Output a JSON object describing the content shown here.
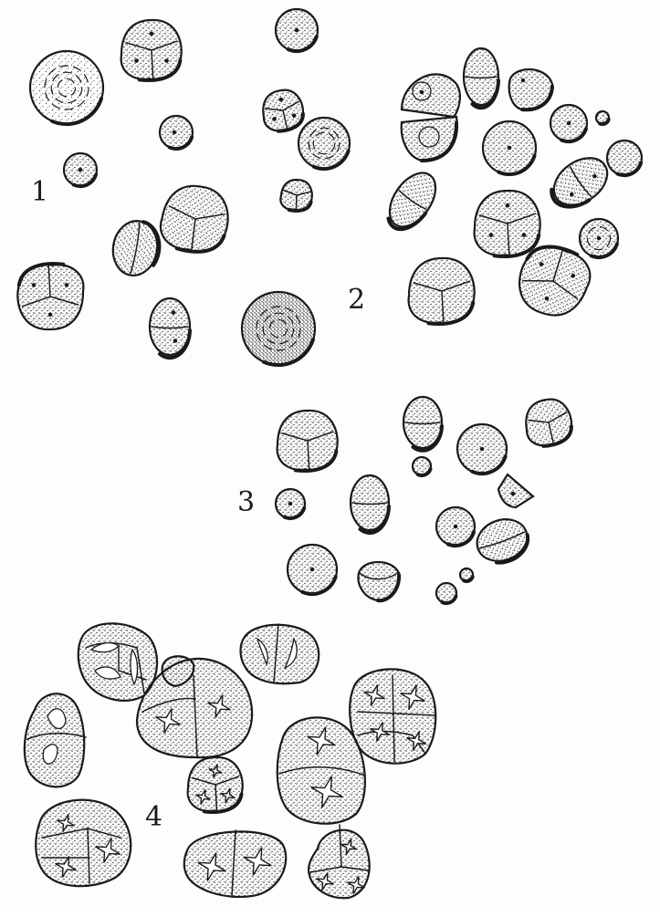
{
  "plate": {
    "figure_labels": [
      "1",
      "2",
      "3",
      "4"
    ]
  },
  "colors": {
    "paper": "#fdfdfb",
    "ink": "#1a1a1a",
    "stipple": "#2a2a2a"
  }
}
